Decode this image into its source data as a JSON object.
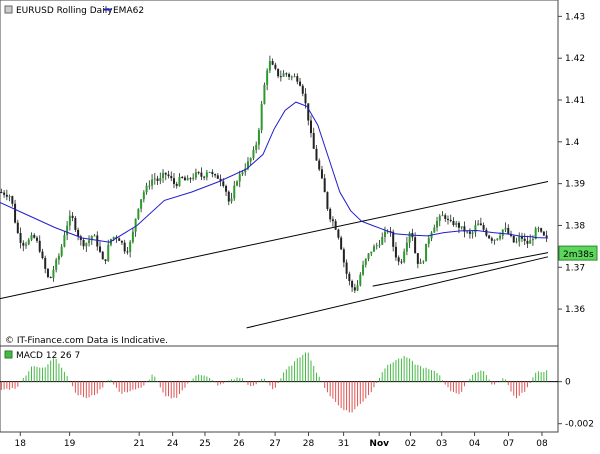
{
  "chart_data": [
    {
      "type": "candlestick",
      "title": "EURUSD Rolling Daily",
      "overlay_label": "EMA62",
      "series": [
        {
          "name": "EMA62",
          "color": "#1f1fcc",
          "x": [
            0,
            5,
            10,
            15,
            20,
            25,
            30,
            35,
            40,
            45,
            48,
            50,
            52,
            54,
            56,
            58,
            60,
            62,
            64,
            66,
            68,
            70,
            72,
            75,
            78,
            81,
            84,
            87,
            90,
            93,
            95,
            97,
            98,
            100
          ],
          "y": [
            1.3855,
            1.3825,
            1.3795,
            1.377,
            1.376,
            1.38,
            1.386,
            1.388,
            1.3905,
            1.3935,
            1.397,
            1.403,
            1.4075,
            1.4095,
            1.4085,
            1.404,
            1.396,
            1.388,
            1.3835,
            1.381,
            1.38,
            1.379,
            1.378,
            1.3777,
            1.3775,
            1.3783,
            1.3787,
            1.3788,
            1.3783,
            1.3779,
            1.3774,
            1.3773,
            1.3771,
            1.377
          ]
        }
      ],
      "price_path": {
        "x": [
          0,
          1,
          2,
          3,
          4,
          5,
          6,
          7,
          8,
          9,
          10,
          11,
          12,
          13,
          14,
          15,
          16,
          17,
          18,
          19,
          20,
          21,
          22,
          23,
          24,
          25,
          26,
          27,
          28,
          29,
          30,
          31,
          32,
          33,
          34,
          35,
          36,
          37,
          38,
          39,
          40,
          41,
          42,
          43,
          44,
          45,
          46,
          47,
          48,
          49,
          50,
          51,
          52,
          53,
          54,
          55,
          56,
          57,
          58,
          59,
          60,
          61,
          62,
          63,
          64,
          65,
          66,
          67,
          68,
          69,
          70,
          71,
          72,
          73,
          74,
          75,
          76,
          77,
          78,
          79,
          80,
          81,
          82,
          83,
          84,
          85,
          86,
          87,
          88,
          89,
          90,
          91,
          92,
          93,
          94,
          95,
          96,
          97,
          98,
          99,
          100
        ],
        "y": [
          1.388,
          1.3875,
          1.387,
          1.379,
          1.3755,
          1.376,
          1.3775,
          1.3755,
          1.3705,
          1.3665,
          1.3705,
          1.3735,
          1.3795,
          1.3825,
          1.3785,
          1.3755,
          1.376,
          1.378,
          1.3745,
          1.3705,
          1.3765,
          1.3775,
          1.3765,
          1.3735,
          1.3765,
          1.3835,
          1.3875,
          1.3895,
          1.3915,
          1.3905,
          1.3925,
          1.3915,
          1.3895,
          1.3915,
          1.3905,
          1.3915,
          1.3925,
          1.3915,
          1.3935,
          1.3915,
          1.3915,
          1.3895,
          1.3845,
          1.3905,
          1.3925,
          1.3945,
          1.3965,
          1.4005,
          1.4115,
          1.4195,
          1.4175,
          1.4155,
          1.4165,
          1.4155,
          1.4155,
          1.4135,
          1.4075,
          1.3995,
          1.3945,
          1.3895,
          1.3825,
          1.3805,
          1.3765,
          1.3695,
          1.3655,
          1.3645,
          1.3695,
          1.3725,
          1.3745,
          1.3755,
          1.3775,
          1.3795,
          1.3735,
          1.3705,
          1.3755,
          1.3795,
          1.3715,
          1.3705,
          1.3765,
          1.3795,
          1.3815,
          1.3825,
          1.3805,
          1.3805,
          1.3795,
          1.3785,
          1.3775,
          1.3805,
          1.3795,
          1.3775,
          1.3765,
          1.3775,
          1.3795,
          1.3775,
          1.3755,
          1.3775,
          1.3755,
          1.3765,
          1.3795,
          1.3775,
          1.3765
        ]
      },
      "trendlines": [
        {
          "x": [
            0,
            100
          ],
          "y": [
            1.3625,
            1.3905
          ]
        },
        {
          "x": [
            45,
            100
          ],
          "y": [
            1.3555,
            1.3725
          ]
        },
        {
          "x": [
            68,
            100
          ],
          "y": [
            1.3655,
            1.3735
          ]
        }
      ],
      "x_tick_labels": [
        "18",
        "19",
        "21",
        "24",
        "25",
        "26",
        "27",
        "28",
        "31",
        "Nov",
        "02",
        "03",
        "04",
        "07",
        "08"
      ],
      "x_tick_positions": [
        3.7,
        12.7,
        25.4,
        31.5,
        37.4,
        43.6,
        50.2,
        56.3,
        62.7,
        69.2,
        74.9,
        80.6,
        86.6,
        92.8,
        98.9
      ],
      "y_tick_labels": [
        "1.43",
        "1.42",
        "1.41",
        "1.4",
        "1.39",
        "1.38",
        "1.37",
        "1.36"
      ],
      "y_tick_values": [
        1.43,
        1.42,
        1.41,
        1.4,
        1.39,
        1.38,
        1.37,
        1.36
      ],
      "ylim": [
        1.355,
        1.432
      ],
      "current_price_label": "2m38s",
      "watermark": "© IT-Finance.com Data is Indicative.",
      "colors": {
        "up": "#2a9a2a",
        "down": "#222222",
        "ema": "#1f1fcc",
        "badge": "#5cd65c"
      }
    },
    {
      "type": "histogram",
      "title": "MACD 12 26 7",
      "y_tick_labels": [
        "0",
        "-0.002"
      ],
      "y_tick_values": [
        0,
        -0.002
      ],
      "ylim": [
        -0.0023,
        0.0016
      ],
      "x": [
        0,
        3,
        6,
        8,
        10,
        12,
        14,
        16,
        18,
        20,
        22,
        24,
        26,
        28,
        30,
        32,
        34,
        36,
        38,
        40,
        42,
        44,
        46,
        48,
        50,
        52,
        54,
        56,
        58,
        60,
        62,
        64,
        66,
        68,
        70,
        72,
        74,
        76,
        78,
        80,
        82,
        84,
        86,
        88,
        90,
        92,
        94,
        96,
        98,
        100
      ],
      "values": [
        -0.0004,
        -0.0003,
        0.0008,
        0.0006,
        0.0012,
        0.0004,
        -0.0006,
        -0.0008,
        -0.0005,
        0.0002,
        -0.0006,
        -0.0004,
        -0.0003,
        0.0004,
        -0.0007,
        -0.0008,
        -0.0002,
        0.0004,
        0.0002,
        -0.0002,
        0.0001,
        0.0002,
        -0.0003,
        0.0002,
        -0.0004,
        0.0005,
        0.001,
        0.0015,
        0.0003,
        -0.0006,
        -0.0012,
        -0.0015,
        -0.001,
        -0.0004,
        0.0006,
        0.001,
        0.0012,
        0.0008,
        0.0006,
        0.0004,
        -0.0004,
        -0.0006,
        0.0003,
        0.0006,
        -0.0002,
        0.0002,
        -0.0008,
        -0.0004,
        0.0005,
        0.0005
      ],
      "colors": {
        "pos": "#44b944",
        "neg": "#e05252"
      }
    }
  ]
}
